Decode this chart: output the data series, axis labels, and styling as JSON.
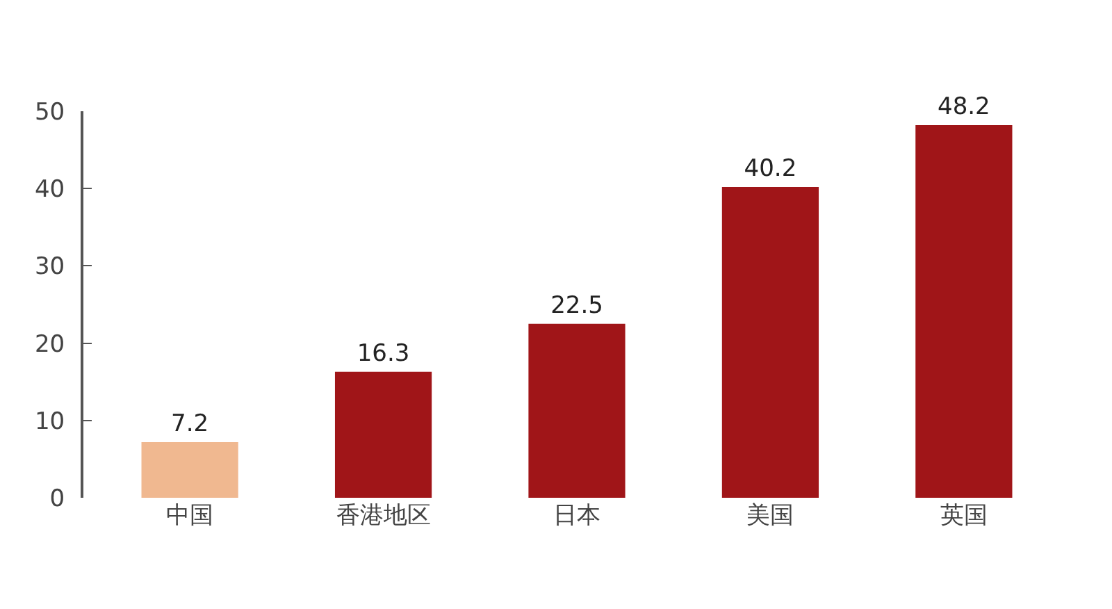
{
  "chart_data": {
    "type": "bar",
    "categories": [
      "中国",
      "香港地区",
      "日本",
      "美国",
      "英国"
    ],
    "values": [
      7.2,
      16.3,
      22.5,
      40.2,
      48.2
    ],
    "colors": [
      "#f0b890",
      "#a01518",
      "#a01518",
      "#a01518",
      "#a01518"
    ],
    "ylim": [
      0,
      50
    ],
    "yticks": [
      0,
      10,
      20,
      30,
      40,
      50
    ],
    "grid": false,
    "data_labels": true
  }
}
